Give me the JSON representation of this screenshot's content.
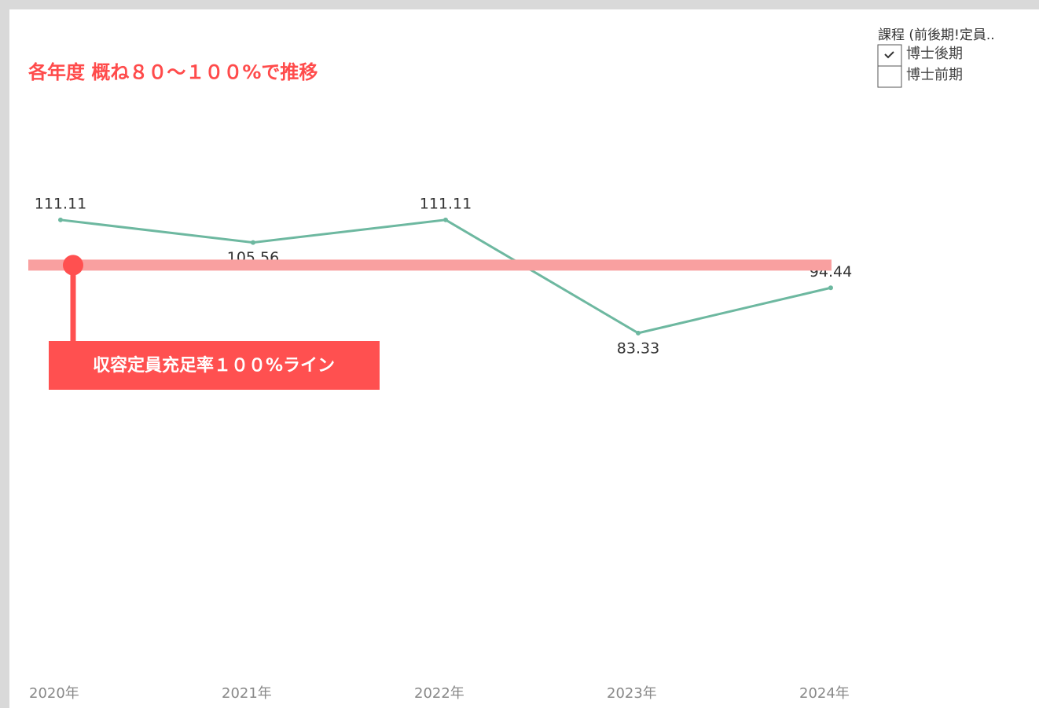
{
  "chart_data": {
    "type": "line",
    "title": "各年度 概ね８０～１００%で推移",
    "categories": [
      "2020年",
      "2021年",
      "2022年",
      "2023年",
      "2024年"
    ],
    "series": [
      {
        "name": "博士後期",
        "color": "#6db8a0",
        "values": [
          111.11,
          105.56,
          111.11,
          83.33,
          94.44
        ]
      }
    ],
    "ylim": [
      0,
      140
    ],
    "reference_line": {
      "value": 100,
      "label": "収容定員充足率１００%ライン",
      "color": "#f9a0a0"
    },
    "filter": {
      "title": "課程 (前後期!定員..",
      "options": [
        {
          "label": "博士後期",
          "checked": true
        },
        {
          "label": "博士前期",
          "checked": false
        }
      ]
    }
  }
}
